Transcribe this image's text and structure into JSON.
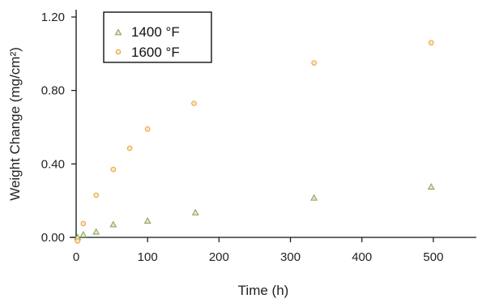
{
  "chart_data": {
    "type": "scatter",
    "xlabel": "Time  (h)",
    "ylabel": "Weight Change  (mg/cm²)",
    "xlim": [
      0,
      550
    ],
    "ylim": [
      0,
      1.2
    ],
    "x_ticks": [
      "0",
      "100",
      "200",
      "300",
      "400",
      "500"
    ],
    "x_tick_values": [
      0,
      100,
      200,
      300,
      400,
      500
    ],
    "y_ticks": [
      "0.00",
      "0.40",
      "0.80",
      "1.20"
    ],
    "y_tick_values": [
      0,
      0.4,
      0.8,
      1.2
    ],
    "grid": false,
    "legend_position": "top-left",
    "series": [
      {
        "name": "1400 °F",
        "marker": "triangle",
        "color": "#8aa05c",
        "fill": "#dfe8c8",
        "x": [
          2,
          10,
          28,
          52,
          100,
          167,
          333,
          497
        ],
        "y": [
          0.0,
          0.015,
          0.03,
          0.07,
          0.09,
          0.135,
          0.215,
          0.275
        ]
      },
      {
        "name": "1600 °F",
        "marker": "circle",
        "color": "#e8a23a",
        "fill": "#fde6c2",
        "x": [
          2,
          10,
          28,
          52,
          75,
          100,
          165,
          333,
          497
        ],
        "y": [
          -0.02,
          0.075,
          0.23,
          0.37,
          0.485,
          0.59,
          0.73,
          0.95,
          1.06
        ]
      }
    ]
  }
}
